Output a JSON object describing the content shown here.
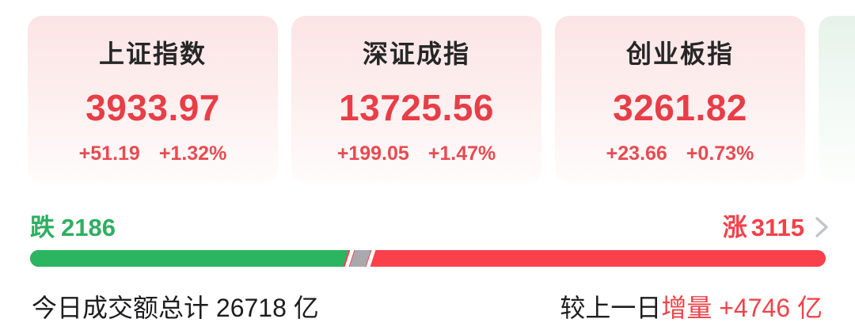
{
  "colors": {
    "up_red": "#e73e47",
    "down_green": "#2fae62",
    "bar_red": "#fa414b",
    "bar_green": "#2cb560",
    "bar_flat_gray": "#a9a9ad",
    "card_pink_top": "#fce4e5",
    "card_green_top": "#e5f2e9",
    "text_dark": "#1d1d1f",
    "chevron_gray": "#c2c6cd"
  },
  "index_cards": [
    {
      "name": "上证指数",
      "value": "3933.97",
      "change": "+51.19",
      "change_pct": "+1.32%"
    },
    {
      "name": "深证成指",
      "value": "13725.56",
      "change": "+199.05",
      "change_pct": "+1.47%"
    },
    {
      "name": "创业板指",
      "value": "3261.82",
      "change": "+23.66",
      "change_pct": "+0.73%"
    }
  ],
  "partial_next_card": {
    "trend": "down"
  },
  "market_breadth": {
    "decliners_label": "跌",
    "decliners_count": "2186",
    "advancers_label": "涨",
    "advancers_count": "3115"
  },
  "turnover": {
    "today_text": "今日成交额总计 26718 亿",
    "compare_label": "较上一日",
    "compare_highlight": "增量 +4746 亿"
  }
}
